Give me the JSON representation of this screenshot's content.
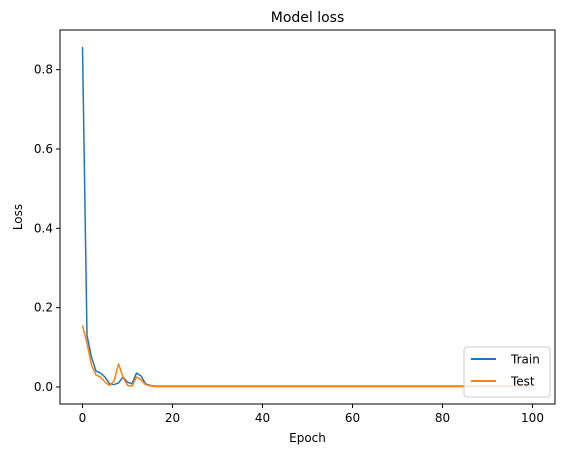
{
  "chart_data": {
    "type": "line",
    "title": "Model loss",
    "xlabel": "Epoch",
    "ylabel": "Loss",
    "xlim": [
      -5,
      105
    ],
    "ylim": [
      -0.043,
      0.9
    ],
    "xticks": [
      0,
      20,
      40,
      60,
      80,
      100
    ],
    "yticks": [
      0.0,
      0.2,
      0.4,
      0.6,
      0.8
    ],
    "grid": false,
    "legend": "lower-right",
    "series": [
      {
        "name": "Train",
        "color": "#1f77b4",
        "x": [
          0,
          1,
          2,
          3,
          4,
          5,
          6,
          7,
          8,
          9,
          10,
          11,
          12,
          13,
          14,
          15,
          16,
          17,
          18,
          19,
          20,
          30,
          40,
          50,
          60,
          70,
          80,
          90,
          100
        ],
        "y": [
          0.857,
          0.13,
          0.075,
          0.04,
          0.035,
          0.025,
          0.008,
          0.006,
          0.01,
          0.025,
          0.012,
          0.008,
          0.035,
          0.028,
          0.008,
          0.004,
          0.002,
          0.002,
          0.002,
          0.002,
          0.002,
          0.002,
          0.002,
          0.002,
          0.002,
          0.002,
          0.002,
          0.002,
          0.002
        ]
      },
      {
        "name": "Test",
        "color": "#ff7f0e",
        "x": [
          0,
          1,
          2,
          3,
          4,
          5,
          6,
          7,
          8,
          9,
          10,
          11,
          12,
          13,
          14,
          15,
          16,
          17,
          18,
          19,
          20,
          30,
          40,
          50,
          60,
          70,
          80,
          90,
          100
        ],
        "y": [
          0.155,
          0.11,
          0.055,
          0.03,
          0.025,
          0.012,
          0.004,
          0.015,
          0.058,
          0.025,
          0.004,
          0.002,
          0.025,
          0.018,
          0.006,
          0.003,
          0.001,
          0.001,
          0.001,
          0.001,
          0.001,
          0.001,
          0.001,
          0.001,
          0.001,
          0.001,
          0.001,
          0.001,
          0.001
        ]
      }
    ]
  }
}
